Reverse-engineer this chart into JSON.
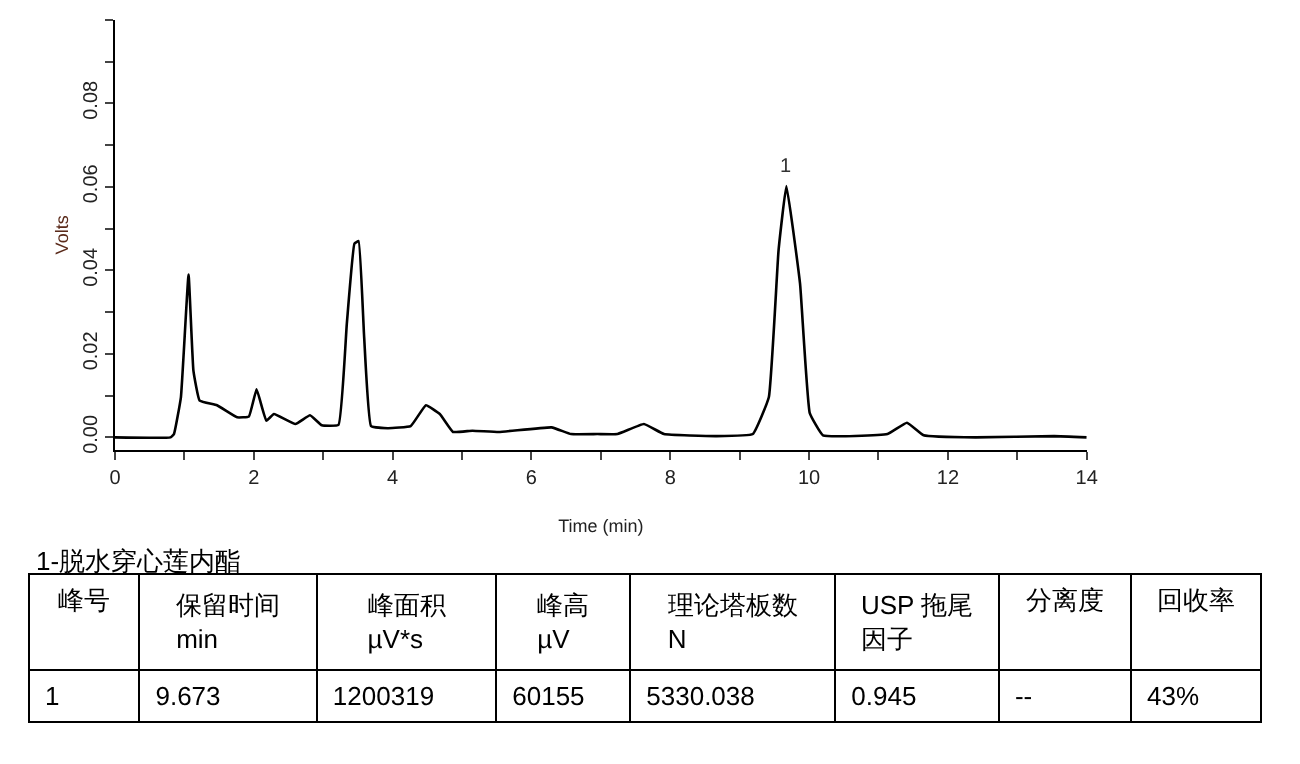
{
  "chart_data": {
    "type": "line",
    "xlabel": "Time (min)",
    "ylabel": "Volts",
    "color": "#000000",
    "x": [
      0,
      0.8,
      0.85,
      0.95,
      1.06,
      1.13,
      1.22,
      1.47,
      1.76,
      1.93,
      2.04,
      2.18,
      2.29,
      2.6,
      2.81,
      2.98,
      3.22,
      3.34,
      3.45,
      3.51,
      3.59,
      3.69,
      3.93,
      4.26,
      4.48,
      4.68,
      4.87,
      5.15,
      5.53,
      6.29,
      6.57,
      6.95,
      7.24,
      7.62,
      7.91,
      8.66,
      9.19,
      9.42,
      9.56,
      9.673,
      9.87,
      10.01,
      10.2,
      11.13,
      11.41,
      11.65,
      12.4,
      13.53,
      14
    ],
    "values": [
      0,
      0,
      0.0008,
      0.0096,
      0.039,
      0.016,
      0.0088,
      0.0077,
      0.0048,
      0.005,
      0.0115,
      0.004,
      0.0056,
      0.0032,
      0.0053,
      0.0029,
      0.003,
      0.0272,
      0.0464,
      0.047,
      0.024,
      0.0027,
      0.0022,
      0.0027,
      0.0077,
      0.0056,
      0.0013,
      0.0016,
      0.0013,
      0.0024,
      0.0008,
      0.0008,
      0.0008,
      0.0032,
      0.0008,
      0.0003,
      0.0008,
      0.0096,
      0.0448,
      0.0602,
      0.0368,
      0.0058,
      0.0005,
      0.0008,
      0.0035,
      0.0005,
      0.0,
      0.0003,
      0.0
    ],
    "xlim": [
      0,
      14
    ],
    "ylim": [
      -0.003,
      0.1
    ],
    "xticks": [
      0,
      {
        "value": 1,
        "label": null
      },
      2,
      {
        "value": 3,
        "label": null
      },
      4,
      {
        "value": 5,
        "label": null
      },
      6,
      {
        "value": 7,
        "label": null
      },
      8,
      {
        "value": 9,
        "label": null
      },
      10,
      {
        "value": 11,
        "label": null
      },
      12,
      {
        "value": 13,
        "label": null
      },
      14
    ],
    "yticks": [
      {
        "value": 0,
        "label": "0.00"
      },
      {
        "value": 0.01,
        "label": null
      },
      0.02,
      {
        "value": 0.03,
        "label": null
      },
      0.04,
      {
        "value": 0.05,
        "label": null
      },
      0.06,
      {
        "value": 0.07,
        "label": null
      },
      0.08,
      {
        "value": 0.09,
        "label": null
      },
      {
        "value": 0.1,
        "label": null
      }
    ],
    "annotations": [
      {
        "text": "1",
        "x": 9.673,
        "y": 0.0602
      },
      "1-脱水穿心莲内酯",
      "峰号",
      "保留时间",
      "峰面积",
      "峰高",
      "理论塔板数",
      "USP 拖尾",
      "分离度",
      "回收率",
      null,
      "min",
      "µV*s",
      "µV",
      "N",
      "因子",
      null,
      null,
      "1",
      "9.673",
      "1200319",
      "60155",
      "5330.038",
      "0.945",
      "--",
      "43%"
    ]
  }
}
